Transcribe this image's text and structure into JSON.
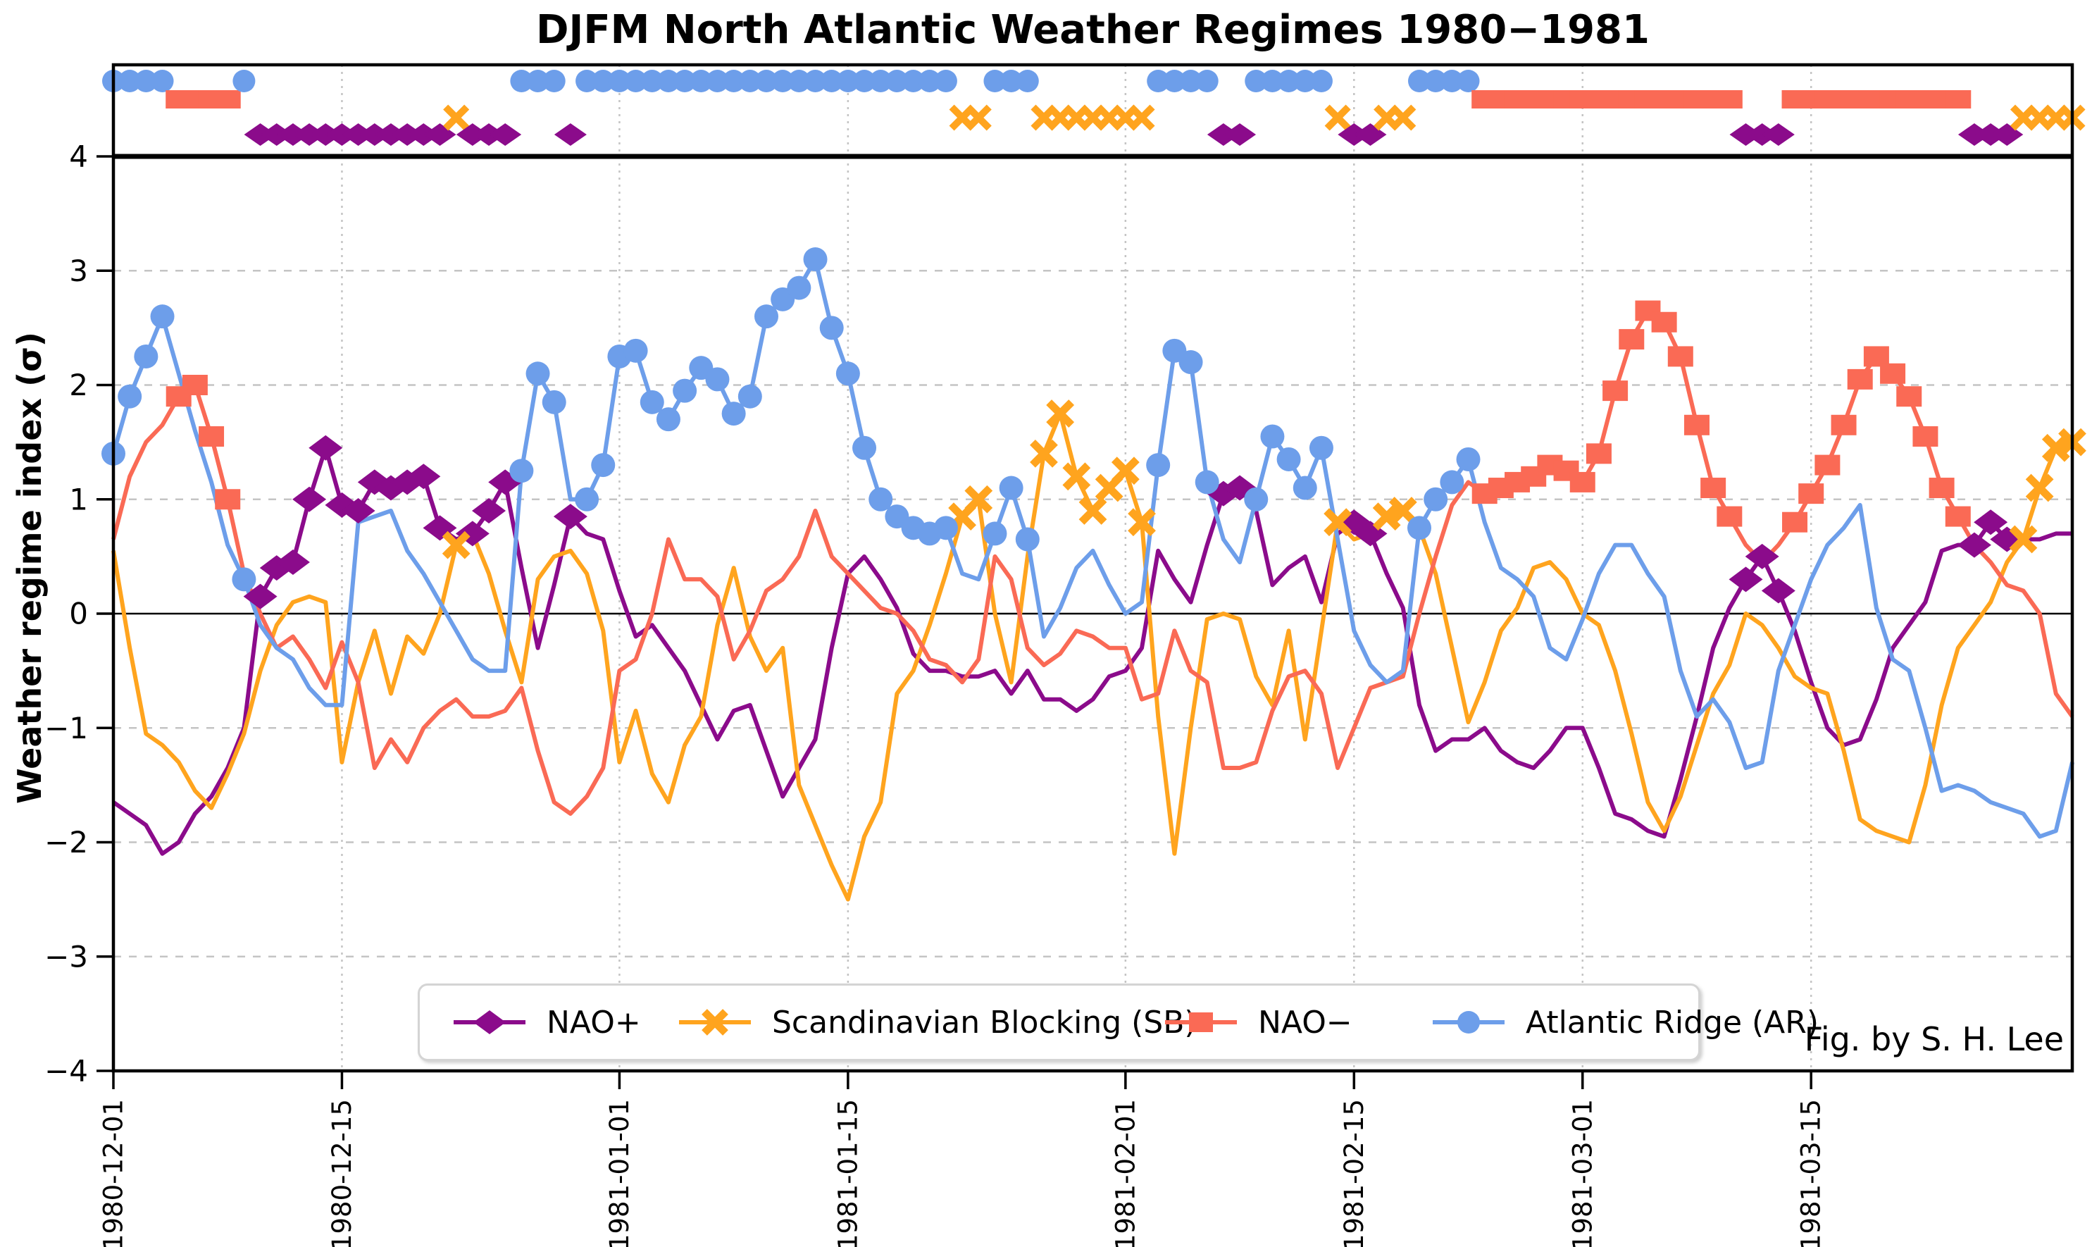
{
  "chart_data": {
    "type": "line",
    "title": "DJFM North Atlantic Weather Regimes 1980−1981",
    "ylabel": "Weather regime index (σ)",
    "xlabel": "",
    "credit": "Fig. by S. H. Lee",
    "start_date": "1980-12-01",
    "end_date": "1981-03-31",
    "n_days": 121,
    "ylim": [
      -4,
      4.8
    ],
    "y_axis_line": 4,
    "zero_line": 0,
    "grid": "dashed horizontal at integers, dotted vertical at date ticks",
    "legend_position": "lower center",
    "x_ticks": [
      {
        "label": "1980-12-01",
        "day": 0
      },
      {
        "label": "1980-12-15",
        "day": 14
      },
      {
        "label": "1981-01-01",
        "day": 31
      },
      {
        "label": "1981-01-15",
        "day": 45
      },
      {
        "label": "1981-02-01",
        "day": 62
      },
      {
        "label": "1981-02-15",
        "day": 76
      },
      {
        "label": "1981-03-01",
        "day": 90
      },
      {
        "label": "1981-03-15",
        "day": 104
      }
    ],
    "y_ticks": [
      {
        "label": "−4",
        "value": -4
      },
      {
        "label": "−3",
        "value": -3
      },
      {
        "label": "−2",
        "value": -2
      },
      {
        "label": "−1",
        "value": -1
      },
      {
        "label": "0",
        "value": 0
      },
      {
        "label": "1",
        "value": 1
      },
      {
        "label": "2",
        "value": 2
      },
      {
        "label": "3",
        "value": 3
      },
      {
        "label": "4",
        "value": 4
      }
    ],
    "series": [
      {
        "key": "NAO+",
        "legend_label": "NAO+",
        "color": "#8B0B8B",
        "marker": "diamond",
        "values": [
          -1.65,
          -1.75,
          -1.85,
          -2.1,
          -2.0,
          -1.75,
          -1.6,
          -1.35,
          -1.0,
          0.15,
          0.4,
          0.45,
          1.0,
          1.45,
          0.95,
          0.9,
          1.15,
          1.1,
          1.15,
          1.2,
          0.75,
          0.65,
          0.7,
          0.9,
          1.15,
          0.4,
          -0.3,
          0.25,
          0.85,
          0.7,
          0.65,
          0.2,
          -0.2,
          -0.1,
          -0.3,
          -0.5,
          -0.8,
          -1.1,
          -0.85,
          -0.8,
          -1.2,
          -1.6,
          -1.35,
          -1.1,
          -0.3,
          0.35,
          0.5,
          0.3,
          0.05,
          -0.35,
          -0.5,
          -0.5,
          -0.55,
          -0.55,
          -0.5,
          -0.7,
          -0.5,
          -0.75,
          -0.75,
          -0.85,
          -0.75,
          -0.55,
          -0.5,
          -0.3,
          0.55,
          0.3,
          0.1,
          0.6,
          1.05,
          1.1,
          0.9,
          0.25,
          0.4,
          0.5,
          0.1,
          0.7,
          0.8,
          0.7,
          0.35,
          0.05,
          -0.8,
          -1.2,
          -1.1,
          -1.1,
          -1.0,
          -1.2,
          -1.3,
          -1.35,
          -1.2,
          -1.0,
          -1.0,
          -1.35,
          -1.75,
          -1.8,
          -1.9,
          -1.95,
          -1.45,
          -0.9,
          -0.3,
          0.05,
          0.3,
          0.5,
          0.2,
          -0.15,
          -0.6,
          -1.0,
          -1.15,
          -1.1,
          -0.75,
          -0.3,
          -0.1,
          0.1,
          0.55,
          0.6,
          0.6,
          0.8,
          0.65,
          0.65,
          0.65,
          0.7,
          0.7
        ]
      },
      {
        "key": "SB",
        "legend_label": "Scandinavian Blocking (SB)",
        "color": "#FFA41E",
        "marker": "xmark",
        "values": [
          0.55,
          -0.3,
          -1.05,
          -1.15,
          -1.3,
          -1.55,
          -1.7,
          -1.4,
          -1.05,
          -0.5,
          -0.1,
          0.1,
          0.15,
          0.1,
          -1.3,
          -0.6,
          -0.15,
          -0.7,
          -0.2,
          -0.35,
          0.0,
          0.6,
          0.7,
          0.35,
          -0.15,
          -0.6,
          0.3,
          0.5,
          0.55,
          0.35,
          -0.15,
          -1.3,
          -0.85,
          -1.4,
          -1.65,
          -1.15,
          -0.9,
          -0.1,
          0.4,
          -0.2,
          -0.5,
          -0.3,
          -1.5,
          -1.85,
          -2.2,
          -2.5,
          -1.95,
          -1.65,
          -0.7,
          -0.5,
          -0.1,
          0.35,
          0.85,
          1.0,
          0.0,
          -0.6,
          0.5,
          1.4,
          1.75,
          1.2,
          0.9,
          1.1,
          1.25,
          0.8,
          -0.9,
          -2.1,
          -1.0,
          -0.05,
          0.0,
          -0.05,
          -0.55,
          -0.8,
          -0.15,
          -1.1,
          -0.15,
          0.8,
          0.65,
          0.7,
          0.85,
          0.9,
          0.75,
          0.35,
          -0.3,
          -0.95,
          -0.6,
          -0.15,
          0.05,
          0.4,
          0.45,
          0.3,
          0.0,
          -0.1,
          -0.5,
          -1.05,
          -1.65,
          -1.9,
          -1.6,
          -1.15,
          -0.7,
          -0.45,
          0.0,
          -0.1,
          -0.3,
          -0.55,
          -0.65,
          -0.7,
          -1.2,
          -1.8,
          -1.9,
          -1.95,
          -2.0,
          -1.5,
          -0.8,
          -0.3,
          -0.1,
          0.1,
          0.45,
          0.65,
          1.1,
          1.45,
          1.5
        ]
      },
      {
        "key": "NAO-",
        "legend_label": "NAO−",
        "color": "#FA6A55",
        "marker": "square",
        "values": [
          0.65,
          1.2,
          1.5,
          1.65,
          1.9,
          2.0,
          1.55,
          1.0,
          0.35,
          0.0,
          -0.3,
          -0.2,
          -0.4,
          -0.65,
          -0.25,
          -0.6,
          -1.35,
          -1.1,
          -1.3,
          -1.0,
          -0.85,
          -0.75,
          -0.9,
          -0.9,
          -0.85,
          -0.65,
          -1.2,
          -1.65,
          -1.75,
          -1.6,
          -1.35,
          -0.5,
          -0.4,
          0.0,
          0.65,
          0.3,
          0.3,
          0.15,
          -0.4,
          -0.15,
          0.2,
          0.3,
          0.5,
          0.9,
          0.5,
          0.35,
          0.2,
          0.05,
          0.0,
          -0.15,
          -0.4,
          -0.45,
          -0.6,
          -0.4,
          0.5,
          0.3,
          -0.3,
          -0.45,
          -0.35,
          -0.15,
          -0.2,
          -0.3,
          -0.3,
          -0.75,
          -0.7,
          -0.15,
          -0.5,
          -0.6,
          -1.35,
          -1.35,
          -1.3,
          -0.85,
          -0.55,
          -0.5,
          -0.7,
          -1.35,
          -1.0,
          -0.65,
          -0.6,
          -0.55,
          0.0,
          0.5,
          0.95,
          1.15,
          1.05,
          1.1,
          1.15,
          1.2,
          1.3,
          1.25,
          1.15,
          1.4,
          1.95,
          2.4,
          2.65,
          2.55,
          2.25,
          1.65,
          1.1,
          0.85,
          0.6,
          0.45,
          0.6,
          0.8,
          1.05,
          1.3,
          1.65,
          2.05,
          2.25,
          2.1,
          1.9,
          1.55,
          1.1,
          0.85,
          0.6,
          0.45,
          0.25,
          0.2,
          0.0,
          -0.7,
          -0.9
        ]
      },
      {
        "key": "AR",
        "legend_label": "Atlantic Ridge (AR)",
        "color": "#6D9EEA",
        "marker": "circle",
        "values": [
          1.4,
          1.9,
          2.25,
          2.6,
          2.1,
          1.6,
          1.15,
          0.6,
          0.3,
          -0.1,
          -0.3,
          -0.4,
          -0.65,
          -0.8,
          -0.8,
          0.8,
          0.85,
          0.9,
          0.55,
          0.35,
          0.1,
          -0.15,
          -0.4,
          -0.5,
          -0.5,
          1.25,
          2.1,
          1.85,
          1.0,
          1.0,
          1.3,
          2.25,
          2.3,
          1.85,
          1.7,
          1.95,
          2.15,
          2.05,
          1.75,
          1.9,
          2.6,
          2.75,
          2.85,
          3.1,
          2.5,
          2.1,
          1.45,
          1.0,
          0.85,
          0.75,
          0.7,
          0.75,
          0.35,
          0.3,
          0.7,
          1.1,
          0.65,
          -0.2,
          0.05,
          0.4,
          0.55,
          0.25,
          0.0,
          0.1,
          1.3,
          2.3,
          2.2,
          1.15,
          0.65,
          0.45,
          1.0,
          1.55,
          1.35,
          1.1,
          1.45,
          0.65,
          -0.15,
          -0.45,
          -0.6,
          -0.5,
          0.75,
          1.0,
          1.15,
          1.35,
          0.8,
          0.4,
          0.3,
          0.15,
          -0.3,
          -0.4,
          -0.05,
          0.35,
          0.6,
          0.6,
          0.35,
          0.15,
          -0.5,
          -0.9,
          -0.75,
          -0.95,
          -1.35,
          -1.3,
          -0.5,
          -0.1,
          0.3,
          0.6,
          0.75,
          0.95,
          0.05,
          -0.4,
          -0.5,
          -1.0,
          -1.55,
          -1.5,
          -1.55,
          -1.65,
          -1.7,
          -1.75,
          -1.95,
          -1.9,
          -1.3
        ]
      }
    ],
    "dominant_regime_runs": [
      {
        "regime": "AR",
        "start": 0,
        "end": 3
      },
      {
        "regime": "NAO-",
        "start": 4,
        "end": 7
      },
      {
        "regime": "AR",
        "start": 8,
        "end": 8
      },
      {
        "regime": "NAO+",
        "start": 9,
        "end": 20
      },
      {
        "regime": "SB",
        "start": 21,
        "end": 21
      },
      {
        "regime": "NAO+",
        "start": 22,
        "end": 24
      },
      {
        "regime": "AR",
        "start": 25,
        "end": 27
      },
      {
        "regime": "NAO+",
        "start": 28,
        "end": 28
      },
      {
        "regime": "AR",
        "start": 29,
        "end": 51
      },
      {
        "regime": "SB",
        "start": 52,
        "end": 53
      },
      {
        "regime": "AR",
        "start": 54,
        "end": 56
      },
      {
        "regime": "SB",
        "start": 57,
        "end": 63
      },
      {
        "regime": "AR",
        "start": 64,
        "end": 67
      },
      {
        "regime": "NAO+",
        "start": 68,
        "end": 69
      },
      {
        "regime": "AR",
        "start": 70,
        "end": 74
      },
      {
        "regime": "SB",
        "start": 75,
        "end": 75
      },
      {
        "regime": "NAO+",
        "start": 76,
        "end": 77
      },
      {
        "regime": "SB",
        "start": 78,
        "end": 79
      },
      {
        "regime": "AR",
        "start": 80,
        "end": 83
      },
      {
        "regime": "NAO-",
        "start": 84,
        "end": 99
      },
      {
        "regime": "NAO+",
        "start": 100,
        "end": 102
      },
      {
        "regime": "NAO-",
        "start": 103,
        "end": 113
      },
      {
        "regime": "NAO+",
        "start": 114,
        "end": 116
      },
      {
        "regime": "SB",
        "start": 117,
        "end": 120
      }
    ],
    "colors": {
      "NAO+": "#8B0B8B",
      "SB": "#FFA41E",
      "NAO-": "#FA6A55",
      "AR": "#6D9EEA",
      "grid": "#c4c4c4",
      "axis": "#000000"
    }
  }
}
